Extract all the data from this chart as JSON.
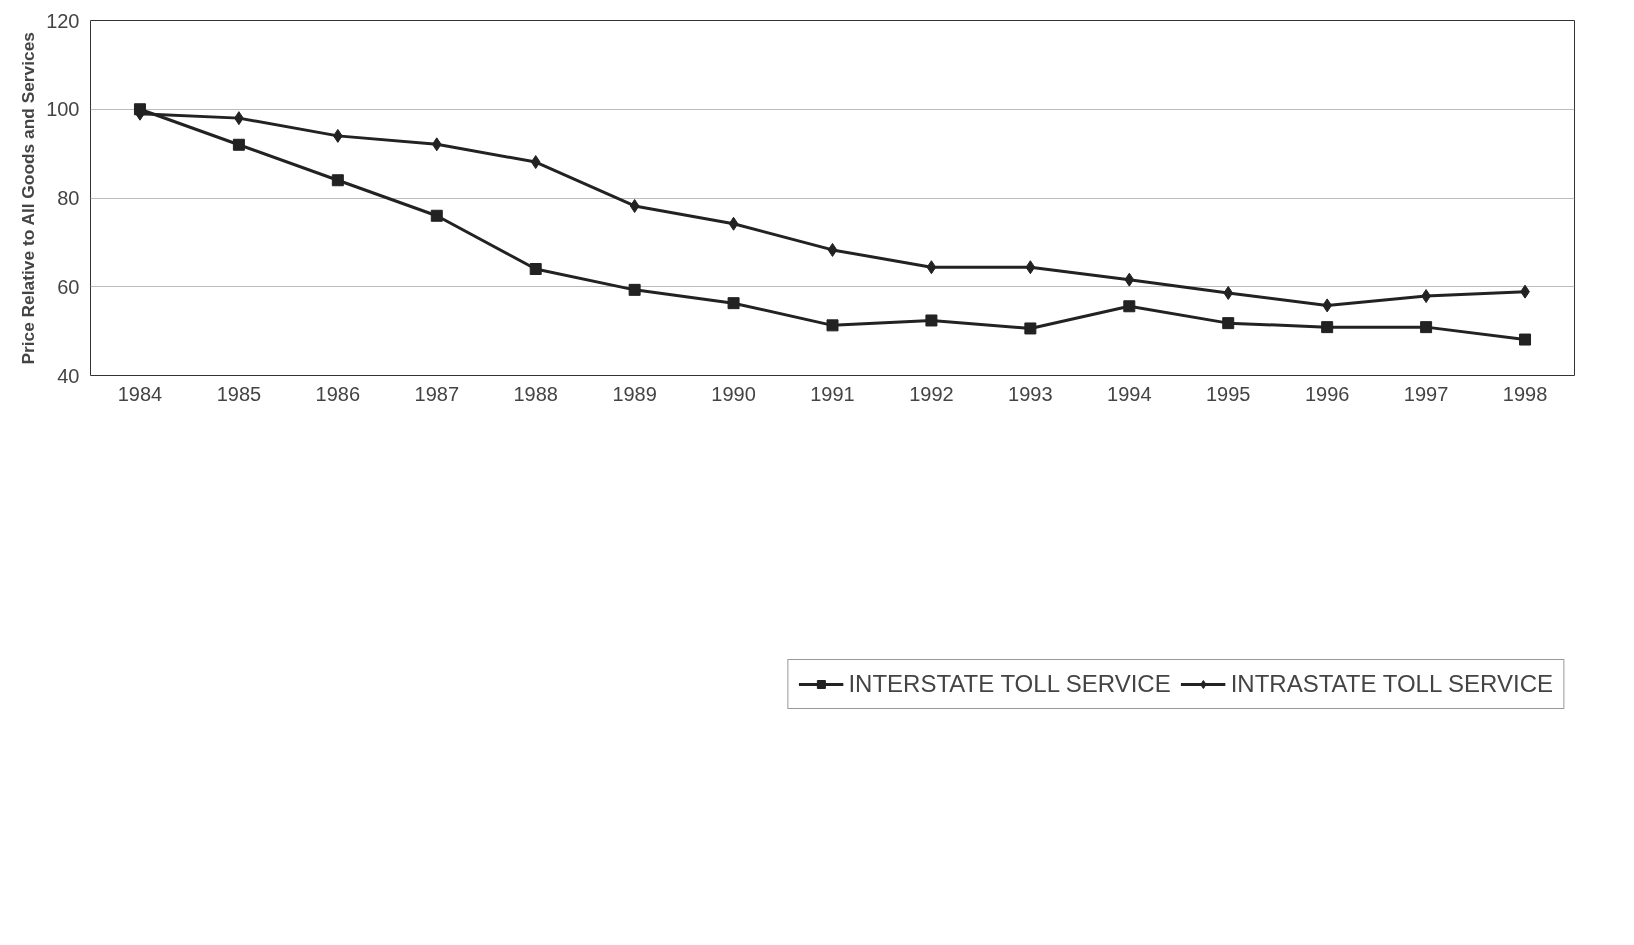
{
  "chart_data": {
    "type": "line",
    "ylabel": "Price Relative to All Goods and Services",
    "categories": [
      "1984",
      "1985",
      "1986",
      "1987",
      "1988",
      "1989",
      "1990",
      "1991",
      "1992",
      "1993",
      "1994",
      "1995",
      "1996",
      "1997",
      "1998"
    ],
    "series": [
      {
        "name": "INTERSTATE TOLL SERVICE",
        "color": "#222222",
        "marker": "square",
        "values": [
          100,
          92,
          84,
          76,
          64,
          59.3,
          56.3,
          51.3,
          52.4,
          50.6,
          55.6,
          51.8,
          50.9,
          50.9,
          48.1
        ]
      },
      {
        "name": "INTRASTATE TOLL SERVICE",
        "color": "#222222",
        "marker": "diamond",
        "values": [
          99,
          98,
          94,
          92.1,
          88.1,
          78.2,
          74.2,
          68.3,
          64.4,
          64.4,
          61.6,
          58.6,
          55.8,
          57.9,
          58.9
        ]
      }
    ],
    "ylim": [
      40,
      120
    ],
    "yticks": [
      40,
      60,
      80,
      100,
      120
    ],
    "grid": "y",
    "legend": "bottom",
    "line_style": "solid"
  }
}
